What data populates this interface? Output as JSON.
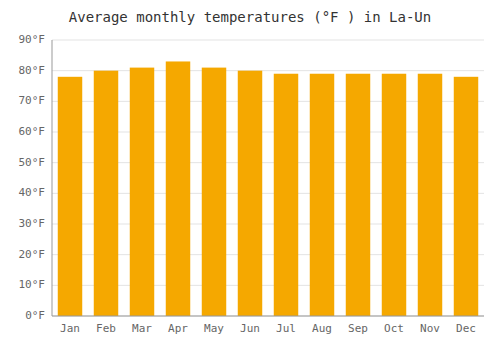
{
  "chart_data": {
    "type": "bar",
    "title": "Average monthly temperatures (°F ) in La-Un",
    "categories": [
      "Jan",
      "Feb",
      "Mar",
      "Apr",
      "May",
      "Jun",
      "Jul",
      "Aug",
      "Sep",
      "Oct",
      "Nov",
      "Dec"
    ],
    "values": [
      78,
      80,
      81,
      83,
      81,
      80,
      79,
      79,
      79,
      79,
      79,
      78
    ],
    "color": "#F5A800",
    "ylim": [
      0,
      90
    ],
    "yticks": [
      {
        "value": 0,
        "label": "0°F"
      },
      {
        "value": 10,
        "label": "10°F"
      },
      {
        "value": 20,
        "label": "20°F"
      },
      {
        "value": 30,
        "label": "30°F"
      },
      {
        "value": 40,
        "label": "40°F"
      },
      {
        "value": 50,
        "label": "50°F"
      },
      {
        "value": 60,
        "label": "60°F"
      },
      {
        "value": 70,
        "label": "70°F"
      },
      {
        "value": 80,
        "label": "80°F"
      },
      {
        "value": 90,
        "label": "90°F"
      }
    ],
    "grid": true
  }
}
